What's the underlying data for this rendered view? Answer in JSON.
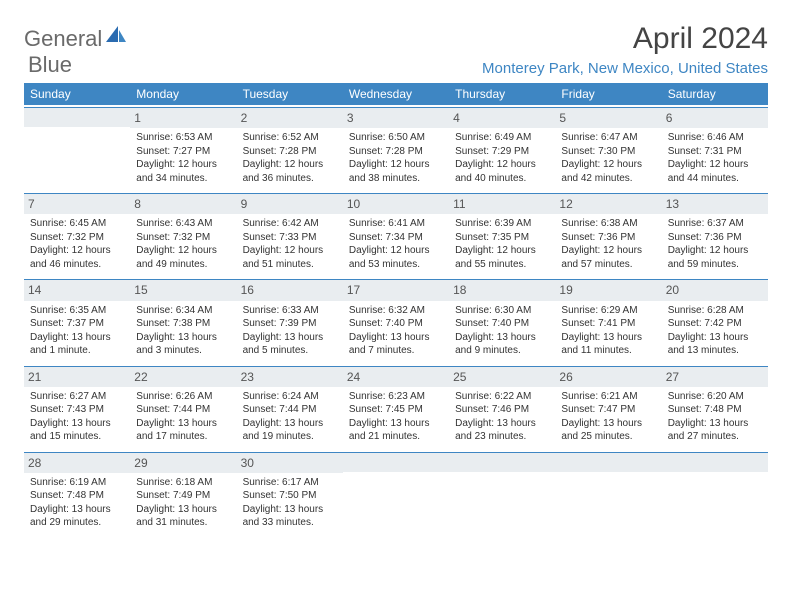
{
  "logo": {
    "part1": "General",
    "part2": "Blue"
  },
  "title": "April 2024",
  "location": "Monterey Park, New Mexico, United States",
  "colors": {
    "header_bg": "#3e86c3",
    "header_text": "#ffffff",
    "daynum_bg": "#e9edf0",
    "border": "#3e86c3",
    "title_color": "#444444",
    "location_color": "#3e86c3",
    "body_text": "#333333"
  },
  "day_headers": [
    "Sunday",
    "Monday",
    "Tuesday",
    "Wednesday",
    "Thursday",
    "Friday",
    "Saturday"
  ],
  "weeks": [
    [
      {
        "num": "",
        "lines": []
      },
      {
        "num": "1",
        "lines": [
          "Sunrise: 6:53 AM",
          "Sunset: 7:27 PM",
          "Daylight: 12 hours and 34 minutes."
        ]
      },
      {
        "num": "2",
        "lines": [
          "Sunrise: 6:52 AM",
          "Sunset: 7:28 PM",
          "Daylight: 12 hours and 36 minutes."
        ]
      },
      {
        "num": "3",
        "lines": [
          "Sunrise: 6:50 AM",
          "Sunset: 7:28 PM",
          "Daylight: 12 hours and 38 minutes."
        ]
      },
      {
        "num": "4",
        "lines": [
          "Sunrise: 6:49 AM",
          "Sunset: 7:29 PM",
          "Daylight: 12 hours and 40 minutes."
        ]
      },
      {
        "num": "5",
        "lines": [
          "Sunrise: 6:47 AM",
          "Sunset: 7:30 PM",
          "Daylight: 12 hours and 42 minutes."
        ]
      },
      {
        "num": "6",
        "lines": [
          "Sunrise: 6:46 AM",
          "Sunset: 7:31 PM",
          "Daylight: 12 hours and 44 minutes."
        ]
      }
    ],
    [
      {
        "num": "7",
        "lines": [
          "Sunrise: 6:45 AM",
          "Sunset: 7:32 PM",
          "Daylight: 12 hours and 46 minutes."
        ]
      },
      {
        "num": "8",
        "lines": [
          "Sunrise: 6:43 AM",
          "Sunset: 7:32 PM",
          "Daylight: 12 hours and 49 minutes."
        ]
      },
      {
        "num": "9",
        "lines": [
          "Sunrise: 6:42 AM",
          "Sunset: 7:33 PM",
          "Daylight: 12 hours and 51 minutes."
        ]
      },
      {
        "num": "10",
        "lines": [
          "Sunrise: 6:41 AM",
          "Sunset: 7:34 PM",
          "Daylight: 12 hours and 53 minutes."
        ]
      },
      {
        "num": "11",
        "lines": [
          "Sunrise: 6:39 AM",
          "Sunset: 7:35 PM",
          "Daylight: 12 hours and 55 minutes."
        ]
      },
      {
        "num": "12",
        "lines": [
          "Sunrise: 6:38 AM",
          "Sunset: 7:36 PM",
          "Daylight: 12 hours and 57 minutes."
        ]
      },
      {
        "num": "13",
        "lines": [
          "Sunrise: 6:37 AM",
          "Sunset: 7:36 PM",
          "Daylight: 12 hours and 59 minutes."
        ]
      }
    ],
    [
      {
        "num": "14",
        "lines": [
          "Sunrise: 6:35 AM",
          "Sunset: 7:37 PM",
          "Daylight: 13 hours and 1 minute."
        ]
      },
      {
        "num": "15",
        "lines": [
          "Sunrise: 6:34 AM",
          "Sunset: 7:38 PM",
          "Daylight: 13 hours and 3 minutes."
        ]
      },
      {
        "num": "16",
        "lines": [
          "Sunrise: 6:33 AM",
          "Sunset: 7:39 PM",
          "Daylight: 13 hours and 5 minutes."
        ]
      },
      {
        "num": "17",
        "lines": [
          "Sunrise: 6:32 AM",
          "Sunset: 7:40 PM",
          "Daylight: 13 hours and 7 minutes."
        ]
      },
      {
        "num": "18",
        "lines": [
          "Sunrise: 6:30 AM",
          "Sunset: 7:40 PM",
          "Daylight: 13 hours and 9 minutes."
        ]
      },
      {
        "num": "19",
        "lines": [
          "Sunrise: 6:29 AM",
          "Sunset: 7:41 PM",
          "Daylight: 13 hours and 11 minutes."
        ]
      },
      {
        "num": "20",
        "lines": [
          "Sunrise: 6:28 AM",
          "Sunset: 7:42 PM",
          "Daylight: 13 hours and 13 minutes."
        ]
      }
    ],
    [
      {
        "num": "21",
        "lines": [
          "Sunrise: 6:27 AM",
          "Sunset: 7:43 PM",
          "Daylight: 13 hours and 15 minutes."
        ]
      },
      {
        "num": "22",
        "lines": [
          "Sunrise: 6:26 AM",
          "Sunset: 7:44 PM",
          "Daylight: 13 hours and 17 minutes."
        ]
      },
      {
        "num": "23",
        "lines": [
          "Sunrise: 6:24 AM",
          "Sunset: 7:44 PM",
          "Daylight: 13 hours and 19 minutes."
        ]
      },
      {
        "num": "24",
        "lines": [
          "Sunrise: 6:23 AM",
          "Sunset: 7:45 PM",
          "Daylight: 13 hours and 21 minutes."
        ]
      },
      {
        "num": "25",
        "lines": [
          "Sunrise: 6:22 AM",
          "Sunset: 7:46 PM",
          "Daylight: 13 hours and 23 minutes."
        ]
      },
      {
        "num": "26",
        "lines": [
          "Sunrise: 6:21 AM",
          "Sunset: 7:47 PM",
          "Daylight: 13 hours and 25 minutes."
        ]
      },
      {
        "num": "27",
        "lines": [
          "Sunrise: 6:20 AM",
          "Sunset: 7:48 PM",
          "Daylight: 13 hours and 27 minutes."
        ]
      }
    ],
    [
      {
        "num": "28",
        "lines": [
          "Sunrise: 6:19 AM",
          "Sunset: 7:48 PM",
          "Daylight: 13 hours and 29 minutes."
        ]
      },
      {
        "num": "29",
        "lines": [
          "Sunrise: 6:18 AM",
          "Sunset: 7:49 PM",
          "Daylight: 13 hours and 31 minutes."
        ]
      },
      {
        "num": "30",
        "lines": [
          "Sunrise: 6:17 AM",
          "Sunset: 7:50 PM",
          "Daylight: 13 hours and 33 minutes."
        ]
      },
      {
        "num": "",
        "lines": []
      },
      {
        "num": "",
        "lines": []
      },
      {
        "num": "",
        "lines": []
      },
      {
        "num": "",
        "lines": []
      }
    ]
  ]
}
